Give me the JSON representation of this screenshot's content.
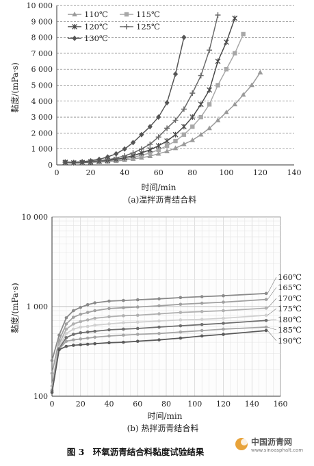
{
  "chart_data": [
    {
      "type": "line",
      "caption": "(a)温拌沥青结合料",
      "xlabel": "时间/min",
      "ylabel": "黏度/(mPa·s)",
      "xlim": [
        0,
        140
      ],
      "ylim": [
        0,
        10000
      ],
      "xticks": [
        "0",
        "20",
        "40",
        "60",
        "80",
        "100",
        "120",
        "140"
      ],
      "yticks": [
        "0",
        "1 000",
        "2 000",
        "3 000",
        "4 000",
        "5 000",
        "6 000",
        "7 000",
        "8 000",
        "9 000",
        "10 000"
      ],
      "grid": "horizontal dashed",
      "legend_position": "top-left",
      "series": [
        {
          "name": "110℃",
          "marker": "triangle",
          "color": "#9a9a9a",
          "x": [
            5,
            10,
            15,
            20,
            25,
            30,
            35,
            40,
            45,
            50,
            55,
            60,
            65,
            70,
            75,
            80,
            85,
            90,
            95,
            100,
            105,
            110,
            115,
            120
          ],
          "y": [
            140,
            110,
            130,
            150,
            180,
            200,
            250,
            300,
            380,
            450,
            550,
            700,
            850,
            1050,
            1300,
            1550,
            1900,
            2300,
            2800,
            3300,
            3800,
            4400,
            5000,
            5800
          ]
        },
        {
          "name": "115℃",
          "marker": "square",
          "color": "#a8a8a8",
          "x": [
            5,
            10,
            15,
            20,
            25,
            30,
            35,
            40,
            45,
            50,
            55,
            60,
            65,
            70,
            75,
            80,
            85,
            90,
            95,
            100,
            105,
            110
          ],
          "y": [
            150,
            120,
            140,
            170,
            200,
            240,
            300,
            380,
            480,
            600,
            750,
            950,
            1200,
            1500,
            1900,
            2400,
            3000,
            3800,
            5000,
            6000,
            7000,
            8200
          ]
        },
        {
          "name": "120℃",
          "marker": "star",
          "color": "#4a4a4a",
          "x": [
            5,
            10,
            15,
            20,
            25,
            30,
            35,
            40,
            45,
            50,
            55,
            60,
            65,
            70,
            75,
            80,
            85,
            90,
            95,
            100,
            105
          ],
          "y": [
            160,
            130,
            150,
            190,
            230,
            280,
            350,
            450,
            580,
            750,
            950,
            1200,
            1500,
            1900,
            2400,
            3000,
            3800,
            4700,
            6500,
            7700,
            9200
          ]
        },
        {
          "name": "125℃",
          "marker": "plus",
          "color": "#6a6a6a",
          "x": [
            5,
            10,
            15,
            20,
            25,
            30,
            35,
            40,
            45,
            50,
            55,
            60,
            65,
            70,
            75,
            80,
            85,
            90,
            95
          ],
          "y": [
            170,
            140,
            170,
            210,
            260,
            330,
            430,
            570,
            750,
            1000,
            1300,
            1750,
            2300,
            2800,
            3500,
            4500,
            5600,
            7200,
            9400
          ]
        },
        {
          "name": "130℃",
          "marker": "diamond",
          "color": "#555555",
          "x": [
            5,
            10,
            15,
            20,
            25,
            30,
            35,
            40,
            45,
            50,
            55,
            60,
            65,
            70,
            75
          ],
          "y": [
            180,
            160,
            200,
            260,
            350,
            500,
            700,
            1000,
            1400,
            1900,
            2400,
            3000,
            3900,
            5700,
            8000
          ]
        }
      ]
    },
    {
      "type": "line",
      "caption": "(b) 热拌沥青结合料",
      "xlabel": "时间/min",
      "ylabel": "黏度/(mPa·s)",
      "xlim": [
        0,
        160
      ],
      "ylim": [
        100,
        10000
      ],
      "yscale": "log",
      "xticks": [
        "0",
        "20",
        "40",
        "60",
        "80",
        "100",
        "120",
        "140",
        "160"
      ],
      "yticks": [
        "100",
        "1 000",
        "10 000"
      ],
      "grid": "both",
      "legend_position": "right (line-end labels)",
      "series": [
        {
          "name": "160℃",
          "color": "#8a8a8a",
          "x": [
            0,
            5,
            10,
            15,
            20,
            25,
            30,
            40,
            50,
            60,
            75,
            90,
            105,
            120,
            150
          ],
          "y": [
            250,
            480,
            750,
            900,
            980,
            1050,
            1100,
            1150,
            1170,
            1190,
            1220,
            1260,
            1290,
            1320,
            1400
          ]
        },
        {
          "name": "165℃",
          "color": "#a0a0a0",
          "x": [
            0,
            5,
            10,
            15,
            20,
            25,
            30,
            40,
            50,
            60,
            75,
            90,
            105,
            120,
            150
          ],
          "y": [
            180,
            420,
            640,
            760,
            820,
            860,
            900,
            950,
            970,
            990,
            1020,
            1060,
            1090,
            1120,
            1200
          ]
        },
        {
          "name": "170℃",
          "color": "#b0b0b0",
          "x": [
            0,
            5,
            10,
            15,
            20,
            25,
            30,
            40,
            50,
            60,
            75,
            90,
            105,
            120,
            150
          ],
          "y": [
            130,
            380,
            560,
            640,
            680,
            710,
            740,
            770,
            790,
            800,
            830,
            860,
            880,
            900,
            960
          ]
        },
        {
          "name": "175℃",
          "color": "#d0d0d0",
          "x": [
            0,
            5,
            10,
            15,
            20,
            25,
            30,
            40,
            50,
            60,
            75,
            90,
            105,
            120,
            150
          ],
          "y": [
            120,
            350,
            500,
            560,
            590,
            600,
            620,
            640,
            660,
            670,
            690,
            710,
            720,
            740,
            800
          ]
        },
        {
          "name": "180℃",
          "color": "#6e6e6e",
          "x": [
            0,
            5,
            10,
            15,
            20,
            25,
            30,
            40,
            50,
            60,
            75,
            90,
            105,
            120,
            150
          ],
          "y": [
            115,
            340,
            450,
            490,
            510,
            520,
            530,
            550,
            560,
            570,
            590,
            610,
            630,
            650,
            700
          ]
        },
        {
          "name": "185℃",
          "color": "#a5a5a5",
          "x": [
            0,
            5,
            10,
            15,
            20,
            25,
            30,
            40,
            50,
            60,
            75,
            90,
            105,
            120,
            150
          ],
          "y": [
            112,
            335,
            410,
            425,
            435,
            445,
            455,
            470,
            480,
            490,
            500,
            520,
            540,
            560,
            590
          ]
        },
        {
          "name": "190℃",
          "color": "#5a5a5a",
          "x": [
            0,
            5,
            10,
            15,
            20,
            25,
            30,
            40,
            50,
            60,
            75,
            90,
            105,
            120,
            150
          ],
          "y": [
            110,
            330,
            360,
            370,
            375,
            380,
            385,
            395,
            400,
            410,
            425,
            445,
            470,
            490,
            540
          ]
        }
      ]
    }
  ],
  "figure_caption": "图 3　环氧沥青结合料黏度试验结果",
  "watermark": {
    "name": "中国沥青网",
    "url": "www.sinoasphalt.com"
  }
}
